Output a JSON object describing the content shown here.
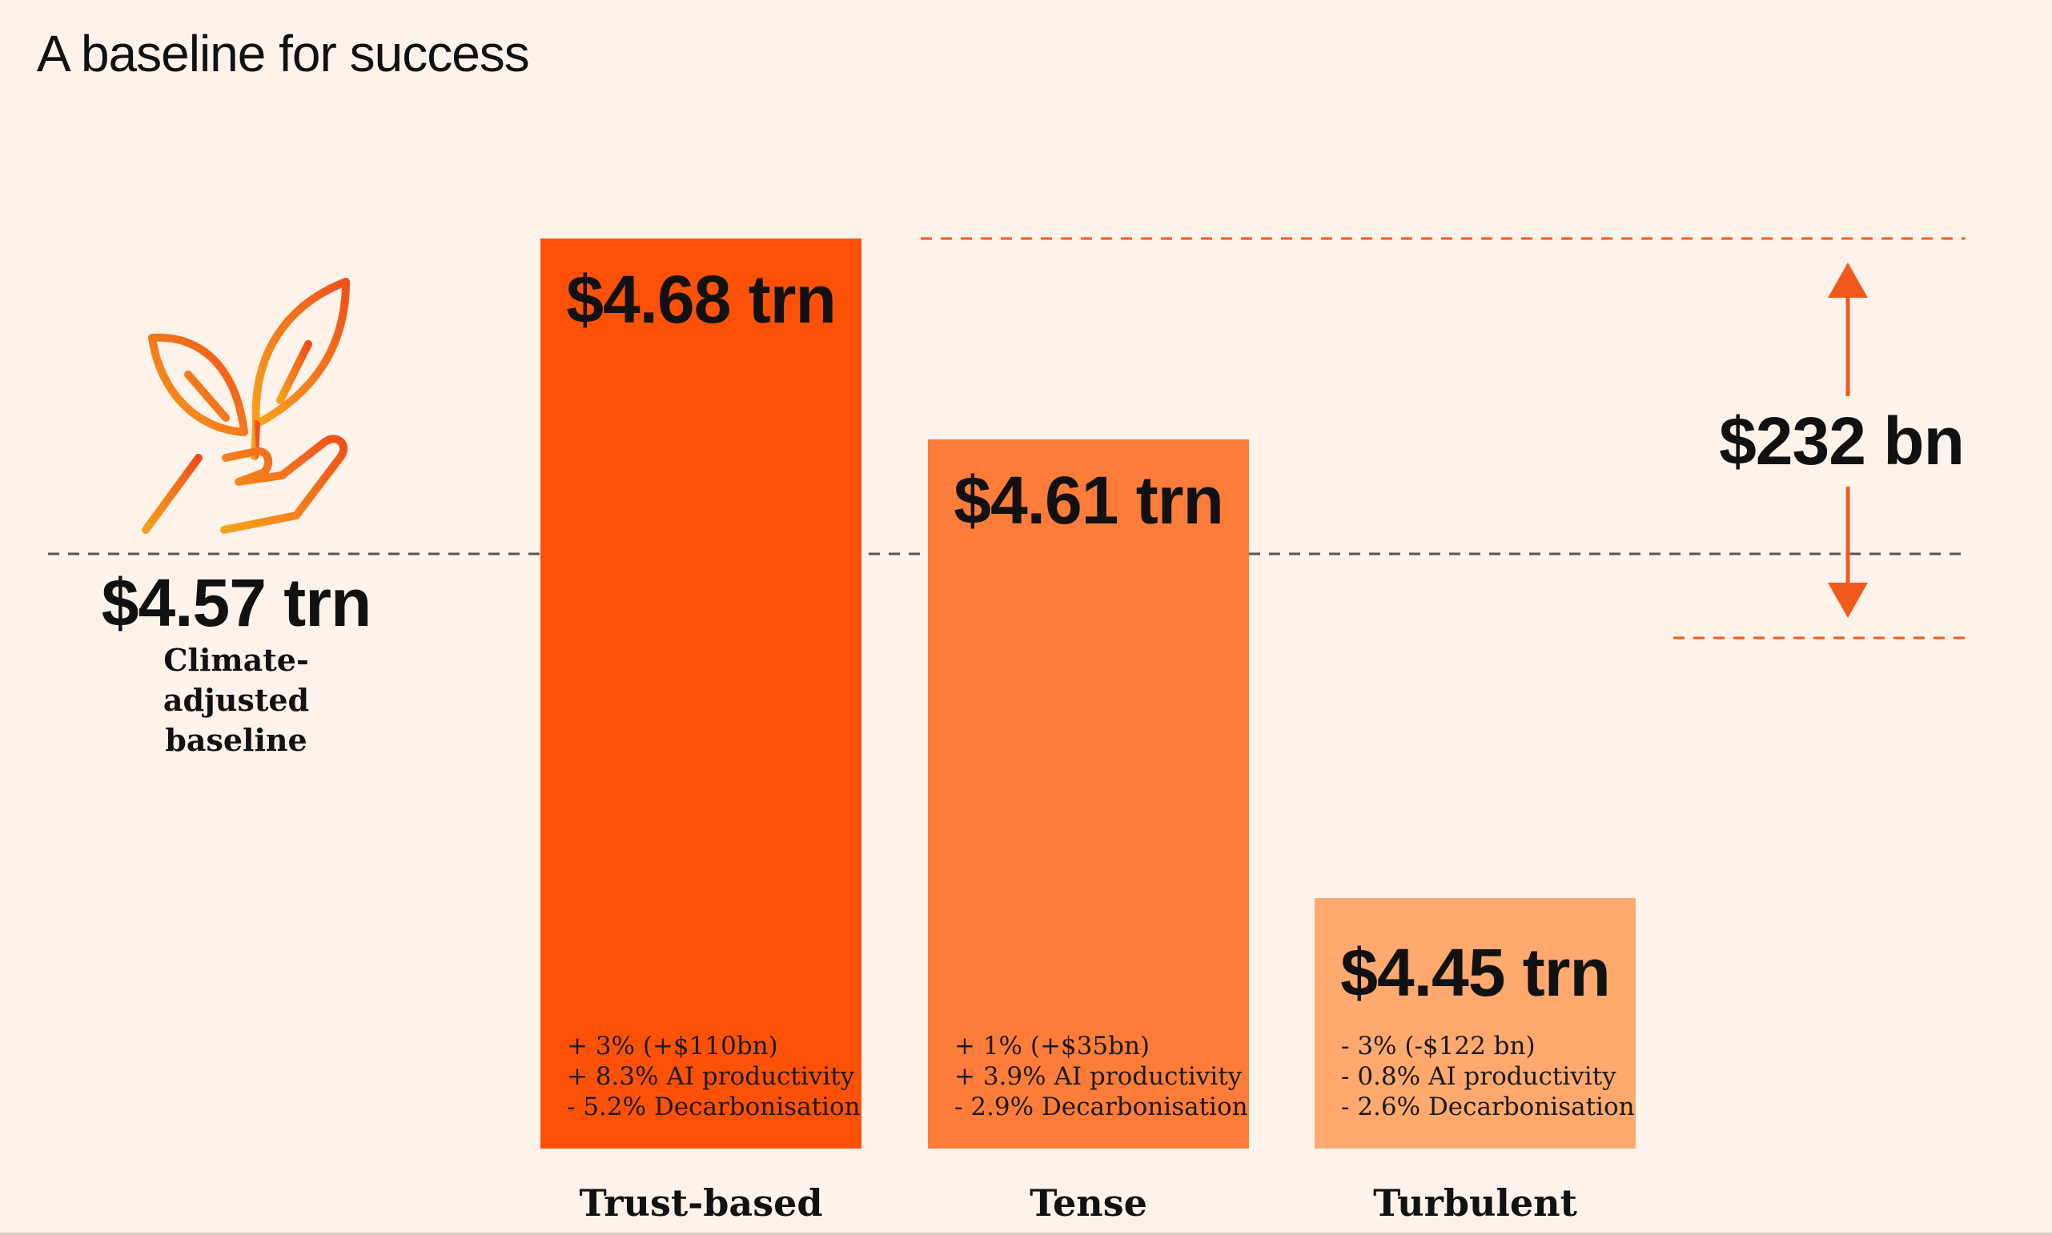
{
  "header": {
    "title": "A baseline for success"
  },
  "colors": {
    "background": "#fdf3ea",
    "trust_based": "#fd5108",
    "tense": "#fe7c39",
    "turbulent": "#ffa96e",
    "accent": "#f25a1c",
    "baseline_line": "#555555"
  },
  "icon": {
    "name": "plant-hand-icon"
  },
  "baseline": {
    "value": 4.57,
    "value_label": "$4.57 trn",
    "label": "Climate-adjusted baseline"
  },
  "range": {
    "label": "$232 bn"
  },
  "chart_data": {
    "type": "bar",
    "title": "A baseline for success",
    "xlabel": "",
    "ylabel": "",
    "categories": [
      "Trust-based",
      "Tense",
      "Turbulent"
    ],
    "values": [
      4.68,
      4.61,
      4.45
    ],
    "value_labels": [
      "$4.68 trn",
      "$4.61 trn",
      "$4.45 trn"
    ],
    "notes": [
      [
        "+ 3% (+$110bn)",
        "+ 8.3% AI productivity",
        "- 5.2% Decarbonisation"
      ],
      [
        "+ 1% (+$35bn)",
        "+ 3.9% AI productivity",
        "- 2.9% Decarbonisation"
      ],
      [
        "- 3% (-$122 bn)",
        "- 0.8% AI productivity",
        "- 2.6% Decarbonisation"
      ]
    ],
    "baseline": 4.57,
    "range_label": "$232 bn",
    "grid": false,
    "legend": "none"
  }
}
